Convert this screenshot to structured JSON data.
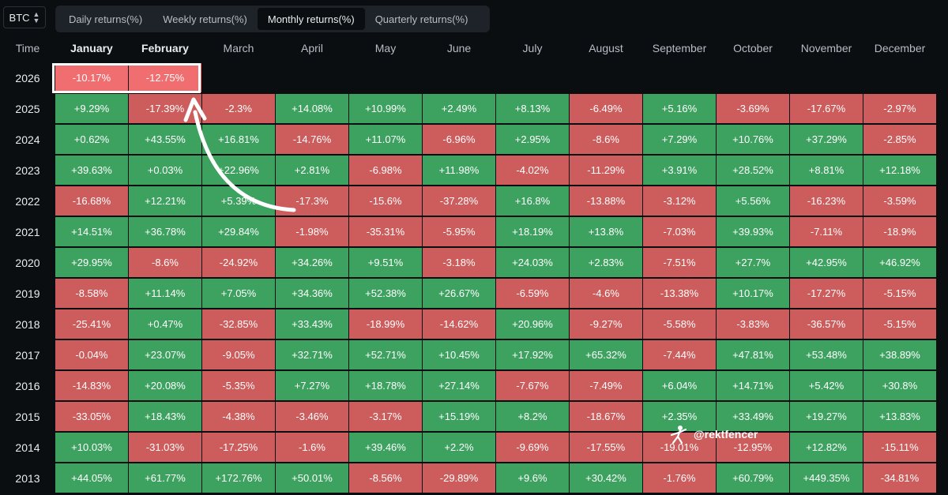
{
  "asset_select": {
    "value": "BTC"
  },
  "tabs": [
    {
      "label": "Daily returns(%)",
      "active": false
    },
    {
      "label": "Weekly returns(%)",
      "active": false
    },
    {
      "label": "Monthly returns(%)",
      "active": true
    },
    {
      "label": "Quarterly returns(%)",
      "active": false
    }
  ],
  "table": {
    "time_header": "Time",
    "months": [
      "January",
      "February",
      "March",
      "April",
      "May",
      "June",
      "July",
      "August",
      "September",
      "October",
      "November",
      "December"
    ],
    "rows": [
      {
        "year": "2026",
        "values": [
          "-10.17%",
          "-12.75%"
        ]
      },
      {
        "year": "2025",
        "values": [
          "+9.29%",
          "-17.39%",
          "-2.3%",
          "+14.08%",
          "+10.99%",
          "+2.49%",
          "+8.13%",
          "-6.49%",
          "+5.16%",
          "-3.69%",
          "-17.67%",
          "-2.97%"
        ]
      },
      {
        "year": "2024",
        "values": [
          "+0.62%",
          "+43.55%",
          "+16.81%",
          "-14.76%",
          "+11.07%",
          "-6.96%",
          "+2.95%",
          "-8.6%",
          "+7.29%",
          "+10.76%",
          "+37.29%",
          "-2.85%"
        ]
      },
      {
        "year": "2023",
        "values": [
          "+39.63%",
          "+0.03%",
          "+22.96%",
          "+2.81%",
          "-6.98%",
          "+11.98%",
          "-4.02%",
          "-11.29%",
          "+3.91%",
          "+28.52%",
          "+8.81%",
          "+12.18%"
        ]
      },
      {
        "year": "2022",
        "values": [
          "-16.68%",
          "+12.21%",
          "+5.39%",
          "-17.3%",
          "-15.6%",
          "-37.28%",
          "+16.8%",
          "-13.88%",
          "-3.12%",
          "+5.56%",
          "-16.23%",
          "-3.59%"
        ]
      },
      {
        "year": "2021",
        "values": [
          "+14.51%",
          "+36.78%",
          "+29.84%",
          "-1.98%",
          "-35.31%",
          "-5.95%",
          "+18.19%",
          "+13.8%",
          "-7.03%",
          "+39.93%",
          "-7.11%",
          "-18.9%"
        ]
      },
      {
        "year": "2020",
        "values": [
          "+29.95%",
          "-8.6%",
          "-24.92%",
          "+34.26%",
          "+9.51%",
          "-3.18%",
          "+24.03%",
          "+2.83%",
          "-7.51%",
          "+27.7%",
          "+42.95%",
          "+46.92%"
        ]
      },
      {
        "year": "2019",
        "values": [
          "-8.58%",
          "+11.14%",
          "+7.05%",
          "+34.36%",
          "+52.38%",
          "+26.67%",
          "-6.59%",
          "-4.6%",
          "-13.38%",
          "+10.17%",
          "-17.27%",
          "-5.15%"
        ]
      },
      {
        "year": "2018",
        "values": [
          "-25.41%",
          "+0.47%",
          "-32.85%",
          "+33.43%",
          "-18.99%",
          "-14.62%",
          "+20.96%",
          "-9.27%",
          "-5.58%",
          "-3.83%",
          "-36.57%",
          "-5.15%"
        ]
      },
      {
        "year": "2017",
        "values": [
          "-0.04%",
          "+23.07%",
          "-9.05%",
          "+32.71%",
          "+52.71%",
          "+10.45%",
          "+17.92%",
          "+65.32%",
          "-7.44%",
          "+47.81%",
          "+53.48%",
          "+38.89%"
        ]
      },
      {
        "year": "2016",
        "values": [
          "-14.83%",
          "+20.08%",
          "-5.35%",
          "+7.27%",
          "+18.78%",
          "+27.14%",
          "-7.67%",
          "-7.49%",
          "+6.04%",
          "+14.71%",
          "+5.42%",
          "+30.8%"
        ]
      },
      {
        "year": "2015",
        "values": [
          "-33.05%",
          "+18.43%",
          "-4.38%",
          "-3.46%",
          "-3.17%",
          "+15.19%",
          "+8.2%",
          "-18.67%",
          "+2.35%",
          "+33.49%",
          "+19.27%",
          "+13.83%"
        ]
      },
      {
        "year": "2014",
        "values": [
          "+10.03%",
          "-31.03%",
          "-17.25%",
          "-1.6%",
          "+39.46%",
          "+2.2%",
          "-9.69%",
          "-17.55%",
          "-19.01%",
          "-12.95%",
          "+12.82%",
          "-15.11%"
        ]
      },
      {
        "year": "2013",
        "values": [
          "+44.05%",
          "+61.77%",
          "+172.76%",
          "+50.01%",
          "-8.56%",
          "-29.89%",
          "+9.6%",
          "+30.42%",
          "-1.76%",
          "+60.79%",
          "+449.35%",
          "-34.81%"
        ]
      }
    ]
  },
  "watermark": {
    "text": "@rektfencer"
  },
  "colors": {
    "positive": "#3da160",
    "negative": "#cd5c5c",
    "highlight": "#f06e70",
    "background": "#0b0e11"
  }
}
